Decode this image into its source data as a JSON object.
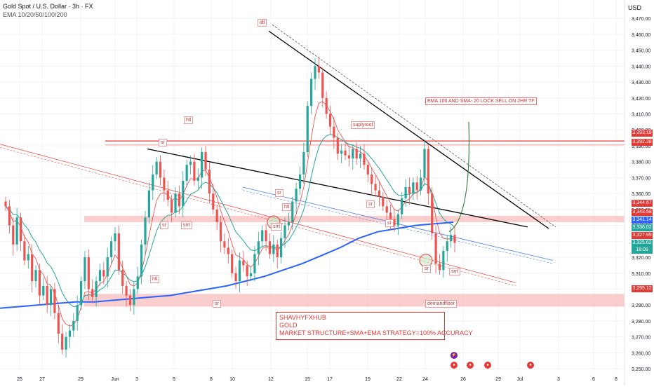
{
  "header": {
    "title": "Gold Spot / U.S. Dollar · 3h · FX",
    "indicator": "EMA 10/20/50/100/200",
    "currency": "USD"
  },
  "banner": {
    "line1": "SHAVHYFXHUB",
    "line2": "GOLD",
    "line3": "MARKET STRUCTURE+SMA+EMA STRATEGY=100% ACCURACY"
  },
  "note": "EMA 100 AND SMA- 20 LOCK SELL ON 2HR TF",
  "tags": {
    "dtl": "dtl",
    "htl_top": "htl",
    "sr_top_left": "sr",
    "suplyroof": "suplyroof",
    "htl_mid": "htl",
    "sr_mid1": "sr",
    "srrt_mid1": "srrt",
    "srrt_mid2": "srrt",
    "sr_mid2": "sr",
    "sr_mid3": "sr",
    "htl_low": "htl",
    "sr_low1": "sr",
    "sr_low2": "sr",
    "srrt_low": "srrt",
    "sr_mid4": "sr",
    "demandfloor": "demandfloor"
  },
  "price_labels": {
    "p1": "3,393.18",
    "p2": "3,392.38",
    "p3": "3,344.67",
    "p4": "3,343.68",
    "p5": "3,341.14",
    "p6": "3,336.02",
    "p7": "3,327.99",
    "p8": "3,325.62",
    "p8_timer": "18:09",
    "p9": "3,295.12"
  },
  "colors": {
    "bull": "#26a69a",
    "bear": "#ef5350",
    "ema200": "#2962ff",
    "ema_green": "#26a69a",
    "ema_red": "#ef5350",
    "zone": "#f8a5a5",
    "trendline": "#000000"
  },
  "chart_data": {
    "type": "candlestick",
    "symbol": "Gold Spot / U.S. Dollar",
    "timeframe": "3h",
    "y_ticks": [
      3250,
      3260,
      3270,
      3280,
      3290,
      3300,
      3310,
      3320,
      3330,
      3340,
      3350,
      3360,
      3370,
      3380,
      3390,
      3400,
      3410,
      3420,
      3430,
      3440,
      3450,
      3460,
      3470
    ],
    "y_tick_labels": [
      "3,250.00",
      "3,260.00",
      "3,270.00",
      "3,280.00",
      "3,290.00",
      "3,300.00",
      "3,310.00",
      "3,320.00",
      "3,330.00",
      "3,340.00",
      "3,350.00",
      "3,360.00",
      "3,370.00",
      "3,380.00",
      "3,390.00",
      "3,400.00",
      "3,410.00",
      "3,420.00",
      "3,430.00",
      "3,440.00",
      "3,450.00",
      "3,460.00",
      "3,470.00"
    ],
    "ylim": [
      3243,
      3478
    ],
    "x_tick_labels": [
      "25",
      "27",
      "29",
      "Jun",
      "3",
      "5",
      "8",
      "10",
      "12",
      "15",
      "17",
      "19",
      "22",
      "24",
      "26",
      "29",
      "Jul",
      "3",
      "6",
      "8"
    ],
    "closes": [
      3352,
      3340,
      3328,
      3345,
      3330,
      3318,
      3322,
      3305,
      3312,
      3296,
      3302,
      3290,
      3300,
      3285,
      3272,
      3262,
      3270,
      3274,
      3280,
      3290,
      3305,
      3320,
      3300,
      3295,
      3305,
      3312,
      3308,
      3320,
      3330,
      3335,
      3312,
      3302,
      3296,
      3290,
      3300,
      3308,
      3328,
      3345,
      3362,
      3372,
      3380,
      3370,
      3362,
      3356,
      3348,
      3360,
      3352,
      3368,
      3378,
      3380,
      3368,
      3370,
      3386,
      3375,
      3360,
      3350,
      3342,
      3330,
      3326,
      3322,
      3310,
      3305,
      3318,
      3315,
      3308,
      3310,
      3322,
      3330,
      3337,
      3330,
      3322,
      3328,
      3320,
      3332,
      3340,
      3342,
      3355,
      3363,
      3372,
      3386,
      3415,
      3432,
      3440,
      3436,
      3420,
      3410,
      3402,
      3395,
      3385,
      3387,
      3384,
      3382,
      3388,
      3382,
      3385,
      3378,
      3372,
      3366,
      3362,
      3358,
      3352,
      3348,
      3344,
      3340,
      3347,
      3357,
      3364,
      3360,
      3367,
      3362,
      3370,
      3388,
      3360,
      3335,
      3316,
      3312,
      3324,
      3330,
      3334,
      3329
    ],
    "ema200": [
      3288,
      3289,
      3290,
      3291,
      3292,
      3292,
      3293,
      3294,
      3295,
      3296,
      3298,
      3300,
      3302,
      3305,
      3308,
      3312,
      3316,
      3321,
      3326,
      3332,
      3336,
      3338,
      3340,
      3341,
      3342
    ]
  }
}
